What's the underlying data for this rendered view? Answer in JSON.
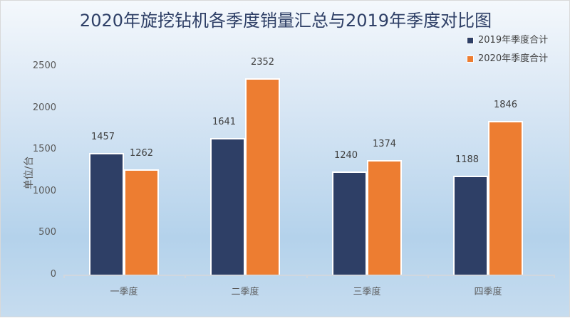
{
  "chart_data": {
    "type": "bar",
    "title": "2020年旋挖钻机各季度销量汇总与2019年季度对比图",
    "xlabel": "",
    "ylabel": "单位/台",
    "ylim": [
      0,
      2500
    ],
    "yticks": [
      0,
      500,
      1000,
      1500,
      2000,
      2500
    ],
    "categories": [
      "一季度",
      "二季度",
      "三季度",
      "四季度"
    ],
    "series": [
      {
        "name": "2019年季度合计",
        "color": "#2e3f66",
        "values": [
          1457,
          1641,
          1240,
          1188
        ]
      },
      {
        "name": "2020年季度合计",
        "color": "#ed7d31",
        "values": [
          1262,
          2352,
          1374,
          1846
        ]
      }
    ],
    "grid": false,
    "legend_position": "top-right",
    "data_labels": true
  },
  "labels": {
    "title": "2020年旋挖钻机各季度销量汇总与2019年季度对比图",
    "ylabel": "单位/台",
    "yticks": [
      "0",
      "500",
      "1000",
      "1500",
      "2000",
      "2500"
    ],
    "categories": [
      "一季度",
      "二季度",
      "三季度",
      "四季度"
    ],
    "legend": [
      "2019年季度合计",
      "2020年季度合计"
    ],
    "values_2019": [
      "1457",
      "1641",
      "1240",
      "1188"
    ],
    "values_2020": [
      "1262",
      "2352",
      "1374",
      "1846"
    ]
  }
}
